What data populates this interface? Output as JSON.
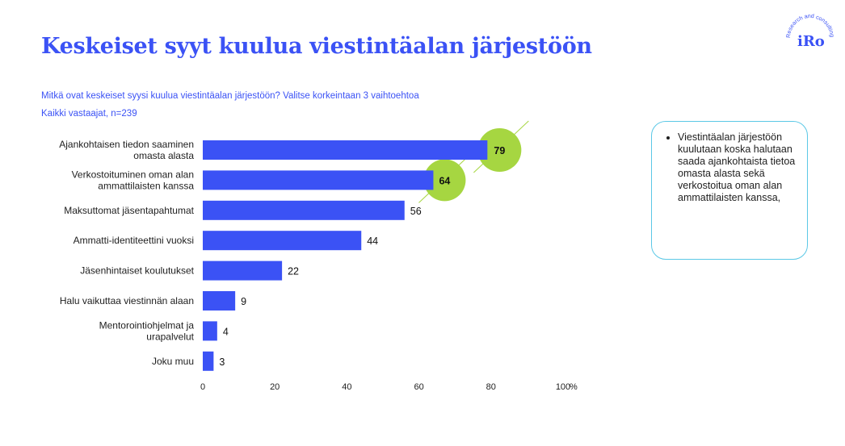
{
  "title": "Keskeiset syyt kuulua viestintäalan järjestöön",
  "question": "Mitkä ovat keskeiset syysi kuulua viestintäalan järjestöön? Valitse korkeintaan 3 vaihtoehtoa",
  "respondents": "Kaikki vastaajat, n=239",
  "logo": {
    "word": "iRo",
    "tagline": "Research and consulting"
  },
  "note": {
    "text": "Viestintäalan järjestöön kuulutaan koska halutaan saada ajankohtaista tietoa omasta alasta sekä verkostoitua oman alan ammattilaisten kanssa,"
  },
  "colors": {
    "bar": "#3b52f5",
    "highlight": "#a6d641",
    "accent": "#3b52f5",
    "note_border": "#5bc8e6"
  },
  "chart_data": {
    "type": "bar",
    "orientation": "horizontal",
    "categories": [
      [
        "Ajankohtaisen tiedon saaminen",
        "omasta alasta"
      ],
      [
        "Verkostoituminen oman alan",
        "ammattilaisten kanssa"
      ],
      [
        "Maksuttomat jäsentapahtumat"
      ],
      [
        "Ammatti-identiteettini vuoksi"
      ],
      [
        "Jäsenhintaiset koulutukset"
      ],
      [
        "Halu vaikuttaa viestinnän alaan"
      ],
      [
        "Mentorointiohjelmat ja",
        "urapalvelut"
      ],
      [
        "Joku muu"
      ]
    ],
    "values": [
      79,
      64,
      56,
      44,
      22,
      9,
      4,
      3
    ],
    "highlighted": [
      0,
      1
    ],
    "xlim": [
      0,
      100
    ],
    "ticks": [
      "0",
      "20",
      "40",
      "60",
      "80",
      "100"
    ],
    "unit": "%",
    "grid": false
  }
}
